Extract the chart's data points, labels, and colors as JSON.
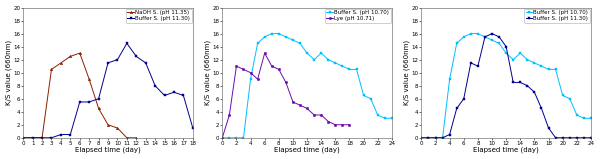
{
  "plot1": {
    "series": [
      {
        "label": "NaOH S. (pH 11.35)",
        "color": "#8B2000",
        "marker": "^",
        "x": [
          0,
          1,
          2,
          3,
          4,
          5,
          6,
          7,
          8,
          9,
          10,
          11,
          12
        ],
        "y": [
          0,
          0,
          0,
          10.5,
          11.5,
          12.5,
          13,
          9,
          4.5,
          2,
          1.5,
          0,
          0
        ]
      },
      {
        "label": "Buffer S. (pH 11.30)",
        "color": "#00008B",
        "marker": "s",
        "x": [
          0,
          1,
          2,
          3,
          4,
          5,
          6,
          7,
          8,
          9,
          10,
          11,
          12,
          13,
          14,
          15,
          16,
          17,
          18
        ],
        "y": [
          0,
          0,
          0,
          0,
          0.5,
          0.5,
          5.5,
          5.5,
          6,
          11.5,
          12,
          14.5,
          12.5,
          11.5,
          8,
          6.5,
          7,
          6.5,
          1.5
        ]
      }
    ],
    "xlabel": "Elapsed time (day)",
    "ylabel": "K/S value (660nm)",
    "xlim": [
      0,
      18
    ],
    "ylim": [
      0,
      20
    ],
    "xticks": [
      0,
      1,
      2,
      3,
      4,
      5,
      6,
      7,
      8,
      9,
      10,
      11,
      12,
      13,
      14,
      15,
      16,
      17,
      18
    ],
    "yticks": [
      0,
      2,
      4,
      6,
      8,
      10,
      12,
      14,
      16,
      18,
      20
    ]
  },
  "plot2": {
    "series": [
      {
        "label": "Buffer S. (pH 10.70)",
        "color": "#00BFFF",
        "marker": "s",
        "x": [
          0,
          1,
          2,
          3,
          4,
          5,
          6,
          7,
          8,
          9,
          10,
          11,
          12,
          13,
          14,
          15,
          16,
          17,
          18,
          19,
          20,
          21,
          22,
          23,
          24
        ],
        "y": [
          0,
          0,
          0,
          0,
          9,
          14.5,
          15.5,
          16,
          16,
          15.5,
          15,
          14.5,
          13,
          12,
          13,
          12,
          11.5,
          11,
          10.5,
          10.5,
          6.5,
          6,
          3.5,
          3,
          3
        ]
      },
      {
        "label": "Lye (pH 10.71)",
        "color": "#6A0DAD",
        "marker": "o",
        "x": [
          0,
          1,
          2,
          3,
          4,
          5,
          6,
          7,
          8,
          9,
          10,
          11,
          12,
          13,
          14,
          15,
          16,
          17,
          18
        ],
        "y": [
          0,
          3.5,
          11,
          10.5,
          10,
          9,
          13,
          11,
          10.5,
          8.5,
          5.5,
          5,
          4.5,
          3.5,
          3.5,
          2.5,
          2,
          2,
          2
        ]
      }
    ],
    "xlabel": "Elapsed time (day)",
    "ylabel": "K/S value (660nm)",
    "xlim": [
      0,
      24
    ],
    "ylim": [
      0,
      20
    ],
    "xticks": [
      0,
      2,
      4,
      6,
      8,
      10,
      12,
      14,
      16,
      18,
      20,
      22,
      24
    ],
    "yticks": [
      0,
      2,
      4,
      6,
      8,
      10,
      12,
      14,
      16,
      18,
      20
    ]
  },
  "plot3": {
    "series": [
      {
        "label": "Buffer S. (pH 10.70)",
        "color": "#00BFFF",
        "marker": "s",
        "x": [
          0,
          1,
          2,
          3,
          4,
          5,
          6,
          7,
          8,
          9,
          10,
          11,
          12,
          13,
          14,
          15,
          16,
          17,
          18,
          19,
          20,
          21,
          22,
          23,
          24
        ],
        "y": [
          0,
          0,
          0,
          0,
          9,
          14.5,
          15.5,
          16,
          16,
          15.5,
          15,
          14.5,
          13,
          12,
          13,
          12,
          11.5,
          11,
          10.5,
          10.5,
          6.5,
          6,
          3.5,
          3,
          3
        ]
      },
      {
        "label": "Buffer S. (pH 11.30)",
        "color": "#00008B",
        "marker": "s",
        "x": [
          0,
          1,
          2,
          3,
          4,
          5,
          6,
          7,
          8,
          9,
          10,
          11,
          12,
          13,
          14,
          15,
          16,
          17,
          18,
          19,
          20,
          21,
          22,
          23,
          24
        ],
        "y": [
          0,
          0,
          0,
          0,
          0.5,
          4.5,
          6,
          11.5,
          11,
          15.5,
          16,
          15.5,
          14,
          8.5,
          8.5,
          8,
          7,
          4.5,
          1.5,
          0,
          0,
          0,
          0,
          0,
          0
        ]
      }
    ],
    "xlabel": "Elapsed time (day)",
    "ylabel": "K/S value (660nm)",
    "xlim": [
      0,
      24
    ],
    "ylim": [
      0,
      20
    ],
    "xticks": [
      0,
      2,
      4,
      6,
      8,
      10,
      12,
      14,
      16,
      18,
      20,
      22,
      24
    ],
    "yticks": [
      0,
      2,
      4,
      6,
      8,
      10,
      12,
      14,
      16,
      18,
      20
    ]
  },
  "background_color": "#ffffff",
  "tick_fontsize": 4,
  "label_fontsize": 5,
  "legend_fontsize": 4,
  "linewidth": 0.7,
  "markersize": 1.8
}
